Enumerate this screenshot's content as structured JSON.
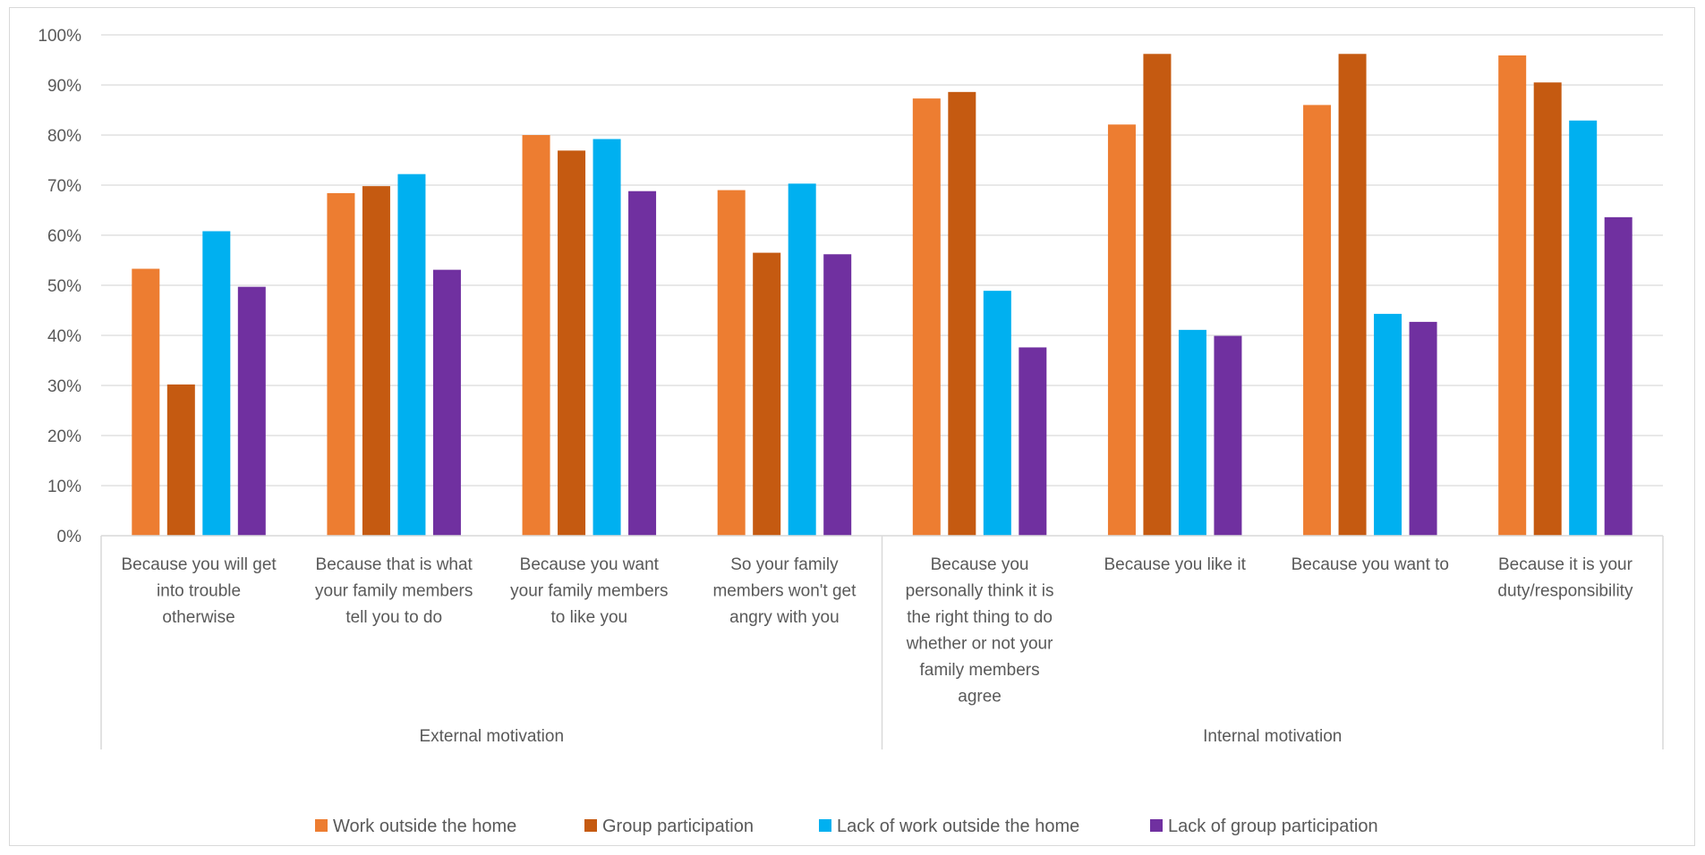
{
  "chart_data": {
    "type": "bar",
    "ylim": [
      0,
      100
    ],
    "y_ticks": [
      "0%",
      "10%",
      "20%",
      "30%",
      "40%",
      "50%",
      "60%",
      "70%",
      "80%",
      "90%",
      "100%"
    ],
    "grid": true,
    "legend_position": "bottom",
    "categories": [
      [
        "Because you will get",
        "into trouble",
        "otherwise"
      ],
      [
        "Because that is what",
        "your family members",
        "tell you to do"
      ],
      [
        "Because you want",
        "your family members",
        "to like you"
      ],
      [
        "So your family",
        "members won't get",
        "angry with you"
      ],
      [
        "Because you",
        "personally think it is",
        "the right thing to do",
        "whether or not your",
        "family members",
        "agree"
      ],
      [
        "Because you like it"
      ],
      [
        "Because you want to"
      ],
      [
        "Because it is your",
        "duty/responsibility"
      ]
    ],
    "groups": [
      {
        "label": "External motivation",
        "span": 4
      },
      {
        "label": "Internal motivation",
        "span": 4
      }
    ],
    "series": [
      {
        "name": "Work outside the home",
        "color": "#ED7D31",
        "values": [
          53.3,
          68.4,
          80.0,
          69.0,
          87.3,
          82.1,
          86.0,
          95.9
        ]
      },
      {
        "name": "Group participation",
        "color": "#C55A11",
        "values": [
          30.2,
          69.8,
          76.9,
          56.5,
          88.6,
          96.2,
          96.2,
          90.5
        ]
      },
      {
        "name": "Lack of work outside the home",
        "color": "#00B0F0",
        "values": [
          60.8,
          72.2,
          79.2,
          70.3,
          48.9,
          41.1,
          44.3,
          82.9
        ]
      },
      {
        "name": "Lack of group participation",
        "color": "#7030A0",
        "values": [
          49.7,
          53.1,
          68.8,
          56.2,
          37.6,
          39.9,
          42.7,
          63.6
        ]
      }
    ]
  }
}
